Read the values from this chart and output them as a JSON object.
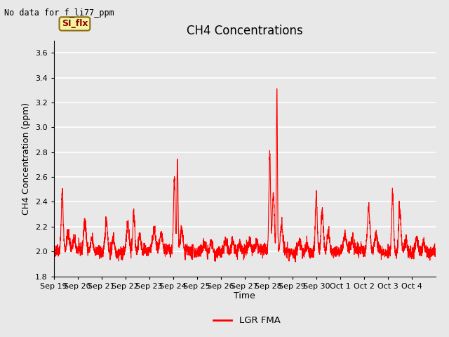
{
  "title": "CH4 Concentrations",
  "xlabel": "Time",
  "ylabel": "CH4 Concentration (ppm)",
  "top_left_text": "No data for f_li77_ppm",
  "legend_label": "LGR FMA",
  "si_flx_label": "SI_flx",
  "ylim": [
    1.8,
    3.7
  ],
  "line_color": "#ff0000",
  "line_width": 0.8,
  "plot_bg_color": "#e8e8e8",
  "grid_color": "#ffffff",
  "x_tick_labels": [
    "Sep 19",
    "Sep 20",
    "Sep 21",
    "Sep 22",
    "Sep 23",
    "Sep 24",
    "Sep 25",
    "Sep 26",
    "Sep 27",
    "Sep 28",
    "Sep 29",
    "Sep 30",
    "Oct 1",
    "Oct 2",
    "Oct 3",
    "Oct 4"
  ],
  "title_fontsize": 12,
  "axis_label_fontsize": 9,
  "tick_fontsize": 8,
  "seed": 42,
  "num_points": 3200
}
